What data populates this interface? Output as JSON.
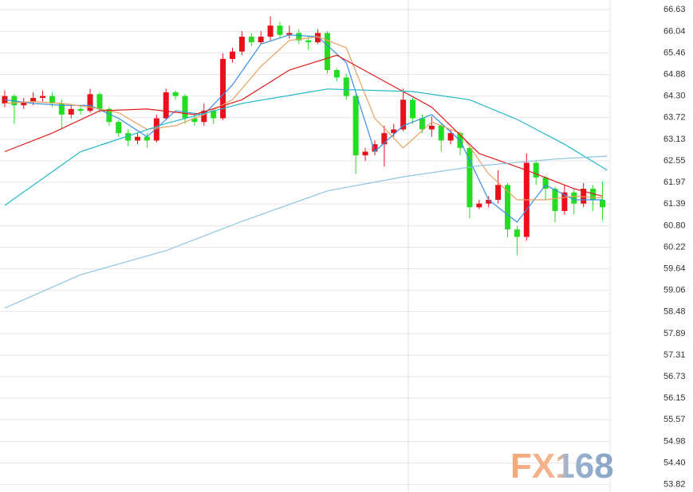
{
  "chart_data": {
    "type": "candlestick",
    "watermark": "FX168",
    "ylim": [
      53.62,
      66.89
    ],
    "xlim": [
      -0.5,
      63.8
    ],
    "yticks": [
      {
        "value": 66.63,
        "label": "66.63"
      },
      {
        "value": 66.04,
        "label": "66.04"
      },
      {
        "value": 65.46,
        "label": "65.46"
      },
      {
        "value": 64.88,
        "label": "64.88"
      },
      {
        "value": 64.3,
        "label": "64.30"
      },
      {
        "value": 63.72,
        "label": "63.72"
      },
      {
        "value": 63.13,
        "label": "63.13"
      },
      {
        "value": 62.55,
        "label": "62.55"
      },
      {
        "value": 61.97,
        "label": "61.97"
      },
      {
        "value": 61.39,
        "label": "61.39"
      },
      {
        "value": 60.8,
        "label": "60.80"
      },
      {
        "value": 60.22,
        "label": "60.22"
      },
      {
        "value": 59.64,
        "label": "59.64"
      },
      {
        "value": 59.06,
        "label": "59.06"
      },
      {
        "value": 58.48,
        "label": "58.48"
      },
      {
        "value": 57.89,
        "label": "57.89"
      },
      {
        "value": 57.31,
        "label": "57.31"
      },
      {
        "value": 56.73,
        "label": "56.73"
      },
      {
        "value": 56.15,
        "label": "56.15"
      },
      {
        "value": 55.57,
        "label": "55.57"
      },
      {
        "value": 54.98,
        "label": "54.98"
      },
      {
        "value": 54.4,
        "label": "54.40"
      },
      {
        "value": 53.82,
        "label": "53.82"
      }
    ],
    "grid": true,
    "up_color": "#e8101a",
    "down_color": "#22dd22",
    "open": [
      64.1,
      64.3,
      64.05,
      64.15,
      64.25,
      64.3,
      64.1,
      63.8,
      63.95,
      63.9,
      64.35,
      63.95,
      63.6,
      63.3,
      63.1,
      63.2,
      63.1,
      63.7,
      64.4,
      64.3,
      63.7,
      63.6,
      63.9,
      63.7,
      65.3,
      65.5,
      65.9,
      65.75,
      65.9,
      66.2,
      65.95,
      66.0,
      65.8,
      65.75,
      66.0,
      65.0,
      64.8,
      64.3,
      62.7,
      62.8,
      63.0,
      63.3,
      63.4,
      64.2,
      63.7,
      63.4,
      63.5,
      63.1,
      63.3,
      62.9,
      61.3,
      61.4,
      61.5,
      61.9,
      60.7,
      60.5,
      62.5,
      62.1,
      61.8,
      61.2,
      61.7,
      61.4,
      61.8,
      61.5
    ],
    "high": [
      64.45,
      64.35,
      64.25,
      64.4,
      64.45,
      64.4,
      64.2,
      64.05,
      64.05,
      64.5,
      64.4,
      64.0,
      63.65,
      63.4,
      63.3,
      63.3,
      63.8,
      64.5,
      64.45,
      64.35,
      63.8,
      64.1,
      63.95,
      65.45,
      65.6,
      66.05,
      66.0,
      66.05,
      66.45,
      66.3,
      66.2,
      66.1,
      65.9,
      66.1,
      66.05,
      65.05,
      64.9,
      64.35,
      62.9,
      63.1,
      63.5,
      63.55,
      64.5,
      64.25,
      63.8,
      63.75,
      63.55,
      63.4,
      63.35,
      62.95,
      61.5,
      61.6,
      62.3,
      61.95,
      60.8,
      62.75,
      62.55,
      62.15,
      61.85,
      61.9,
      61.8,
      61.95,
      61.9,
      62.0
    ],
    "low": [
      64.0,
      63.55,
      63.95,
      64.05,
      64.15,
      64.0,
      63.4,
      63.7,
      63.8,
      63.85,
      63.85,
      63.5,
      63.2,
      62.95,
      63.0,
      62.9,
      63.05,
      63.65,
      64.2,
      63.55,
      63.5,
      63.5,
      63.55,
      63.65,
      65.2,
      65.4,
      65.65,
      65.7,
      65.8,
      65.85,
      65.85,
      65.7,
      65.55,
      65.7,
      64.9,
      64.7,
      64.2,
      62.2,
      62.55,
      62.7,
      62.4,
      63.2,
      63.35,
      63.55,
      63.3,
      63.2,
      62.8,
      63.0,
      62.7,
      61.0,
      61.25,
      61.3,
      61.4,
      60.5,
      60.0,
      60.4,
      61.9,
      61.5,
      60.9,
      61.1,
      61.1,
      61.3,
      61.2,
      60.95
    ],
    "close": [
      64.3,
      64.05,
      64.15,
      64.25,
      64.3,
      64.1,
      63.8,
      63.95,
      63.9,
      64.35,
      63.95,
      63.6,
      63.3,
      63.1,
      63.2,
      63.1,
      63.7,
      64.4,
      64.3,
      63.7,
      63.6,
      63.9,
      63.7,
      65.3,
      65.5,
      65.9,
      65.75,
      65.9,
      66.2,
      65.95,
      66.0,
      65.8,
      65.75,
      66.0,
      65.0,
      64.8,
      64.3,
      62.7,
      62.8,
      63.0,
      63.3,
      63.4,
      64.2,
      63.7,
      63.4,
      63.5,
      63.1,
      63.3,
      62.9,
      61.3,
      61.4,
      61.5,
      61.9,
      60.7,
      60.5,
      62.5,
      62.1,
      61.8,
      61.2,
      61.7,
      61.4,
      61.8,
      61.5,
      61.3
    ],
    "lines": [
      {
        "color": "#3a8ee6",
        "x": [
          0,
          3,
          6,
          9,
          12,
          15,
          18,
          21,
          24,
          27,
          30,
          33,
          36,
          39,
          42,
          45,
          48,
          51,
          54,
          57,
          60,
          63
        ],
        "values": [
          64.2,
          64.1,
          64.05,
          64.05,
          63.7,
          63.2,
          63.9,
          63.8,
          64.6,
          65.7,
          65.95,
          65.9,
          65.2,
          62.8,
          63.5,
          63.8,
          63.1,
          61.5,
          60.9,
          61.9,
          61.5,
          61.5
        ]
      },
      {
        "color": "#e8a060",
        "x": [
          0,
          3,
          6,
          9,
          12,
          15,
          18,
          21,
          24,
          27,
          30,
          33,
          36,
          39,
          42,
          45,
          48,
          51,
          54,
          57,
          60,
          63
        ],
        "values": [
          64.1,
          64.15,
          64.1,
          64.0,
          63.85,
          63.4,
          63.5,
          63.8,
          64.2,
          65.1,
          65.8,
          65.9,
          65.6,
          63.7,
          62.9,
          63.6,
          63.3,
          62.2,
          61.5,
          61.5,
          61.6,
          61.55
        ]
      },
      {
        "color": "#dd1c1c",
        "x": [
          0,
          5,
          10,
          15,
          20,
          25,
          30,
          35,
          40,
          45,
          50,
          55,
          60,
          63
        ],
        "values": [
          62.8,
          63.3,
          63.9,
          63.95,
          63.8,
          64.2,
          65.0,
          65.4,
          64.7,
          64.0,
          62.75,
          62.3,
          61.8,
          61.6
        ]
      },
      {
        "color": "#22b8c8",
        "x": [
          0,
          8,
          17,
          25,
          34,
          43,
          49,
          54,
          59,
          63.5
        ],
        "values": [
          61.35,
          62.8,
          63.56,
          64.1,
          64.49,
          64.42,
          64.2,
          63.67,
          63.0,
          62.3
        ]
      },
      {
        "color": "#8cc4e0",
        "x": [
          0,
          8,
          17,
          25,
          34,
          42,
          50,
          58,
          63.5
        ],
        "values": [
          58.58,
          59.48,
          60.13,
          60.92,
          61.74,
          62.12,
          62.42,
          62.6,
          62.68
        ]
      }
    ]
  }
}
